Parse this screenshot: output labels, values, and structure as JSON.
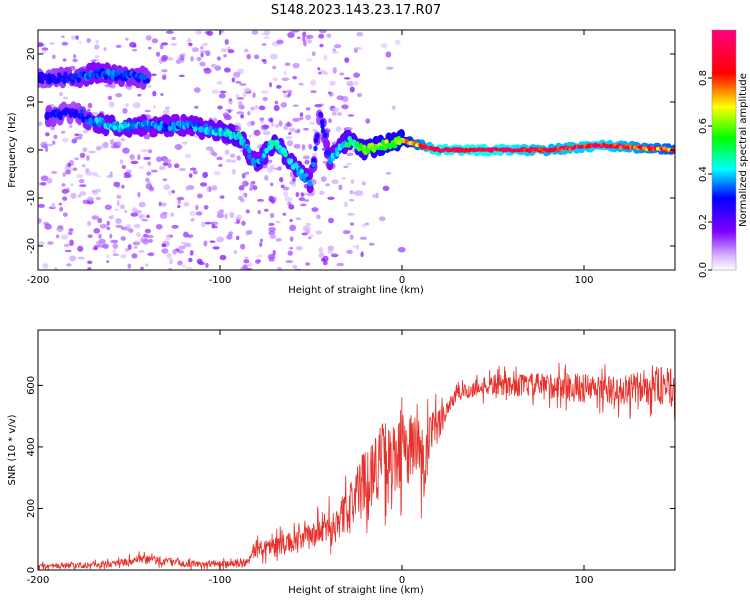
{
  "title": "S148.2023.143.23.17.R07",
  "colors": {
    "snr_line": "#e8302a",
    "axis": "#000000",
    "background": "#ffffff"
  },
  "chart_data": [
    {
      "type": "heatmap",
      "xlabel": "Height of straight line (km)",
      "ylabel": "Frequency (Hz)",
      "xlim": [
        -200,
        150
      ],
      "ylim": [
        -25,
        25
      ],
      "x_ticks": [
        -200,
        -100,
        0,
        100
      ],
      "y_ticks": [
        -20,
        -10,
        0,
        10,
        20
      ],
      "colorbar": {
        "label": "Normalized spectral amplitude",
        "range": [
          0,
          1
        ],
        "ticks": [
          0.0,
          0.2,
          0.4,
          0.6,
          0.8
        ],
        "colormap": "rainbow (white → purple → blue → cyan → green → yellow → red → magenta)"
      },
      "ridge": {
        "x": [
          -195,
          -180,
          -170,
          -160,
          -140,
          -120,
          -100,
          -90,
          -80,
          -70,
          -60,
          -50,
          -45,
          -40,
          -30,
          -20,
          -10,
          0,
          20,
          50,
          80,
          110,
          150
        ],
        "frequency": [
          7,
          8,
          6,
          5,
          5,
          5,
          4,
          3,
          -3,
          2,
          -3,
          -7,
          8,
          -2,
          2,
          0,
          1,
          2,
          0,
          0,
          0,
          1,
          0
        ],
        "amplitude": [
          0.3,
          0.25,
          0.35,
          0.4,
          0.35,
          0.35,
          0.4,
          0.45,
          0.35,
          0.45,
          0.4,
          0.35,
          0.25,
          0.35,
          0.45,
          0.55,
          0.6,
          0.65,
          0.95,
          0.95,
          0.85,
          0.9,
          0.75
        ]
      },
      "secondary_ridge": {
        "x": [
          -200,
          -180,
          -170,
          -140
        ],
        "frequency": [
          15,
          15,
          16,
          15
        ],
        "amplitude": [
          0.25,
          0.3,
          0.35,
          0.3
        ]
      }
    },
    {
      "type": "line",
      "xlabel": "Height of straight line (km)",
      "ylabel": "SNR (10 * v/v)",
      "xlim": [
        -200,
        150
      ],
      "ylim": [
        0,
        780
      ],
      "x_ticks": [
        -200,
        -100,
        0,
        100
      ],
      "y_ticks": [
        0,
        200,
        400,
        600
      ],
      "series": [
        {
          "x": [
            -200,
            -180,
            -160,
            -140,
            -120,
            -100,
            -85,
            -80,
            -70,
            -60,
            -50,
            -40,
            -30,
            -25,
            -20,
            -15,
            -10,
            -5,
            0,
            5,
            10,
            12,
            15,
            20,
            25,
            30,
            40,
            50,
            60,
            80,
            100,
            120,
            140,
            150
          ],
          "y": [
            10,
            15,
            20,
            35,
            20,
            20,
            25,
            70,
            80,
            90,
            110,
            140,
            190,
            250,
            300,
            330,
            370,
            340,
            390,
            400,
            380,
            320,
            420,
            470,
            530,
            570,
            590,
            600,
            600,
            600,
            590,
            580,
            600,
            590
          ],
          "spread": [
            15,
            15,
            15,
            25,
            15,
            15,
            20,
            40,
            45,
            50,
            60,
            80,
            100,
            120,
            150,
            170,
            170,
            180,
            170,
            170,
            180,
            200,
            130,
            80,
            50,
            40,
            40,
            50,
            50,
            60,
            70,
            70,
            90,
            90
          ]
        }
      ]
    }
  ]
}
